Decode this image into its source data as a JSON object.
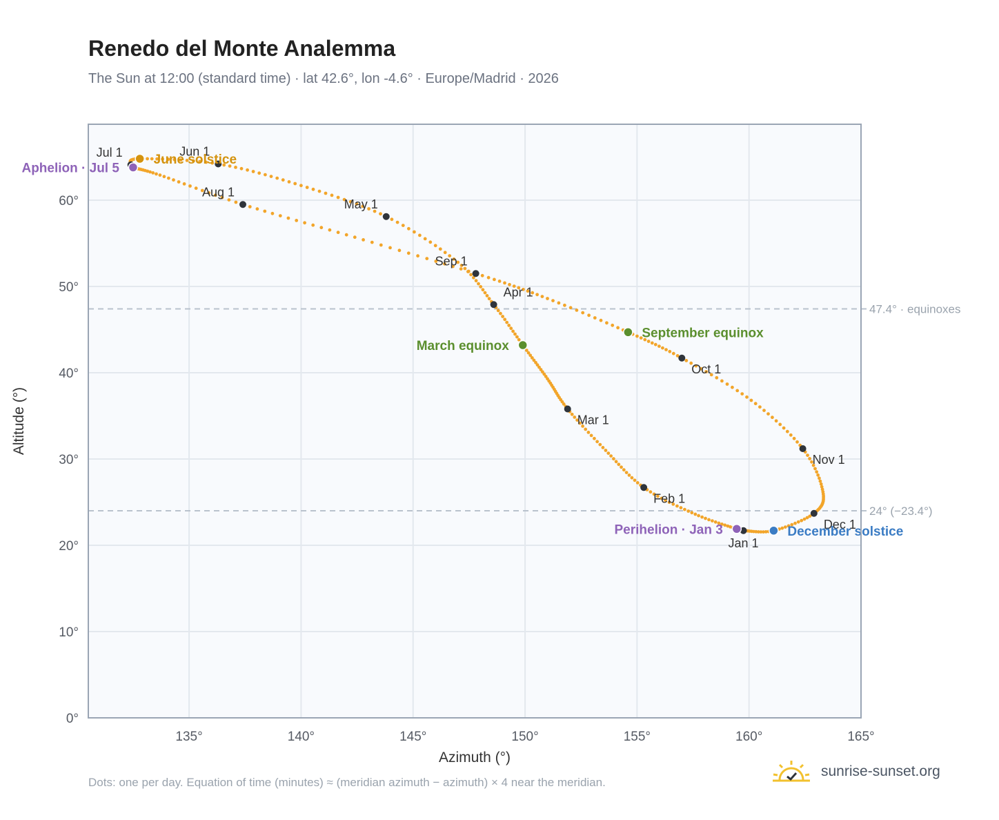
{
  "title": "Renedo del Monte Analemma",
  "subtitle": "The Sun at 12:00 (standard time) · lat 42.6°, lon -4.6° · Europe/Madrid · 2026",
  "footnote": "Dots: one per day. Equation of time (minutes) ≈ (meridian azimuth − azimuth) × 4 near the meridian.",
  "brand": {
    "text": "sunrise-sunset.org",
    "icon": "sun-logo-icon"
  },
  "colors": {
    "path": "#f2a52a",
    "month_dot": "#2f343b",
    "june_solstice": "#d4930f",
    "december_solstice": "#3b7cc4",
    "equinox": "#5b8f2e",
    "apsis": "#8e63b8",
    "grid": "#e3e8ee",
    "plot_bg": "#f8fafd",
    "frame": "#9aa5b4",
    "ref_line": "#b9c2cd"
  },
  "chart_data": {
    "type": "scatter",
    "xlabel": "Azimuth (°)",
    "ylabel": "Altitude (°)",
    "xlim": [
      130.5,
      165
    ],
    "ylim": [
      0,
      68.8
    ],
    "xticks": [
      {
        "value": 135,
        "label": "135°"
      },
      {
        "value": 140,
        "label": "140°"
      },
      {
        "value": 145,
        "label": "145°"
      },
      {
        "value": 150,
        "label": "150°"
      },
      {
        "value": 155,
        "label": "155°"
      },
      {
        "value": 160,
        "label": "160°"
      },
      {
        "value": 165,
        "label": "165°"
      }
    ],
    "yticks": [
      {
        "value": 0,
        "label": "0°"
      },
      {
        "value": 10,
        "label": "10°"
      },
      {
        "value": 20,
        "label": "20°"
      },
      {
        "value": 30,
        "label": "30°"
      },
      {
        "value": 40,
        "label": "40°"
      },
      {
        "value": 50,
        "label": "50°"
      },
      {
        "value": 60,
        "label": "60°"
      }
    ],
    "grid": true,
    "daily_path": [
      {
        "date": "Jan 1",
        "az": 159.75,
        "alt": 21.7
      },
      {
        "date": "Jan 3",
        "az": 159.45,
        "alt": 21.9
      },
      {
        "date": "Jan 15",
        "az": 157.6,
        "alt": 23.6
      },
      {
        "date": "Feb 1",
        "az": 155.3,
        "alt": 26.7
      },
      {
        "date": "Feb 15",
        "az": 153.6,
        "alt": 31.0
      },
      {
        "date": "Mar 1",
        "az": 151.9,
        "alt": 35.8
      },
      {
        "date": "Mar 10",
        "az": 151.0,
        "alt": 39.3
      },
      {
        "date": "Mar 20",
        "az": 149.9,
        "alt": 43.2
      },
      {
        "date": "Apr 1",
        "az": 148.6,
        "alt": 47.9
      },
      {
        "date": "Apr 15",
        "az": 147.0,
        "alt": 52.8
      },
      {
        "date": "May 1",
        "az": 143.8,
        "alt": 58.1
      },
      {
        "date": "May 15",
        "az": 140.0,
        "alt": 61.7
      },
      {
        "date": "Jun 1",
        "az": 136.3,
        "alt": 64.2
      },
      {
        "date": "Jun 21",
        "az": 132.8,
        "alt": 64.8
      },
      {
        "date": "Jul 1",
        "az": 132.4,
        "alt": 64.1
      },
      {
        "date": "Jul 5",
        "az": 132.5,
        "alt": 63.8
      },
      {
        "date": "Jul 15",
        "az": 133.7,
        "alt": 62.9
      },
      {
        "date": "Aug 1",
        "az": 137.4,
        "alt": 59.5
      },
      {
        "date": "Aug 15",
        "az": 142.4,
        "alt": 55.7
      },
      {
        "date": "Sep 1",
        "az": 147.8,
        "alt": 51.5
      },
      {
        "date": "Sep 10",
        "az": 151.0,
        "alt": 48.6
      },
      {
        "date": "Sep 23",
        "az": 154.6,
        "alt": 44.7
      },
      {
        "date": "Oct 1",
        "az": 157.0,
        "alt": 41.7
      },
      {
        "date": "Oct 15",
        "az": 160.1,
        "alt": 36.8
      },
      {
        "date": "Nov 1",
        "az": 162.4,
        "alt": 31.2
      },
      {
        "date": "Nov 15",
        "az": 163.3,
        "alt": 26.2
      },
      {
        "date": "Dec 1",
        "az": 162.9,
        "alt": 23.7
      },
      {
        "date": "Dec 21",
        "az": 161.1,
        "alt": 21.7
      },
      {
        "date": "Jan 1",
        "az": 159.75,
        "alt": 21.7
      }
    ],
    "month_markers": [
      {
        "label": "Jan 1",
        "az": 159.75,
        "alt": 21.7,
        "anchor": "below"
      },
      {
        "label": "Feb 1",
        "az": 155.3,
        "alt": 26.7,
        "anchor": "below-right"
      },
      {
        "label": "Mar 1",
        "az": 151.9,
        "alt": 35.8,
        "anchor": "below-right"
      },
      {
        "label": "Apr 1",
        "az": 148.6,
        "alt": 47.9,
        "anchor": "above-right"
      },
      {
        "label": "May 1",
        "az": 143.8,
        "alt": 58.1,
        "anchor": "above-left"
      },
      {
        "label": "Jun 1",
        "az": 136.3,
        "alt": 64.2,
        "anchor": "above-left"
      },
      {
        "label": "Jul 1",
        "az": 132.4,
        "alt": 64.1,
        "anchor": "above-left"
      },
      {
        "label": "Aug 1",
        "az": 137.4,
        "alt": 59.5,
        "anchor": "above-left"
      },
      {
        "label": "Sep 1",
        "az": 147.8,
        "alt": 51.5,
        "anchor": "above-left"
      },
      {
        "label": "Oct 1",
        "az": 157.0,
        "alt": 41.7,
        "anchor": "below-right"
      },
      {
        "label": "Nov 1",
        "az": 162.4,
        "alt": 31.2,
        "anchor": "below-right"
      },
      {
        "label": "Dec 1",
        "az": 162.9,
        "alt": 23.7,
        "anchor": "below-right"
      }
    ],
    "events": [
      {
        "label": "June solstice",
        "az": 132.8,
        "alt": 64.8,
        "color_key": "june_solstice",
        "side": "right"
      },
      {
        "label": "Aphelion · Jul 5",
        "az": 132.5,
        "alt": 63.8,
        "color_key": "apsis",
        "side": "left"
      },
      {
        "label": "March equinox",
        "az": 149.9,
        "alt": 43.2,
        "color_key": "equinox",
        "side": "left"
      },
      {
        "label": "September equinox",
        "az": 154.6,
        "alt": 44.7,
        "color_key": "equinox",
        "side": "right"
      },
      {
        "label": "Perihelion · Jan 3",
        "az": 159.45,
        "alt": 21.9,
        "color_key": "apsis",
        "side": "left"
      },
      {
        "label": "December solstice",
        "az": 161.1,
        "alt": 21.7,
        "color_key": "december_solstice",
        "side": "right"
      }
    ],
    "reference_lines": [
      {
        "alt": 47.4,
        "label": "47.4° · equinoxes"
      },
      {
        "alt": 24.0,
        "label": "24° (−23.4°)"
      }
    ]
  }
}
